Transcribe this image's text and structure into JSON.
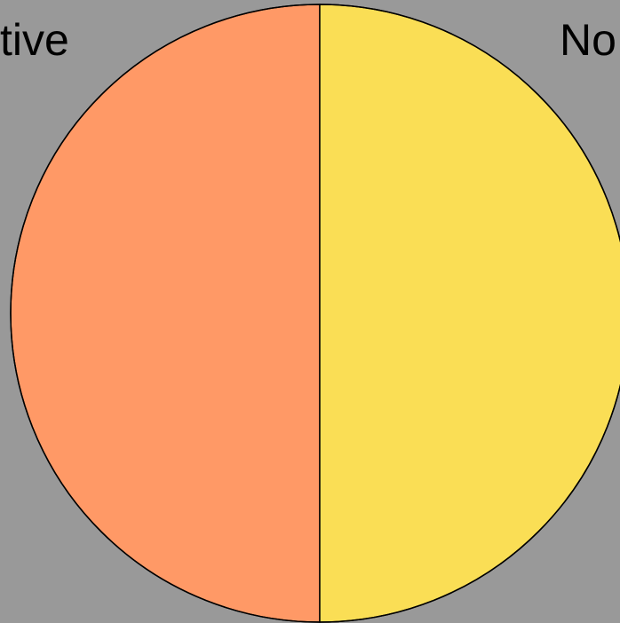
{
  "chart_data": {
    "type": "pie",
    "categories": [
      "tive",
      "No"
    ],
    "values": [
      50,
      50
    ],
    "colors": [
      "#FF9966",
      "#FADE55"
    ],
    "outline_color": "#000000",
    "background": "#999999"
  }
}
